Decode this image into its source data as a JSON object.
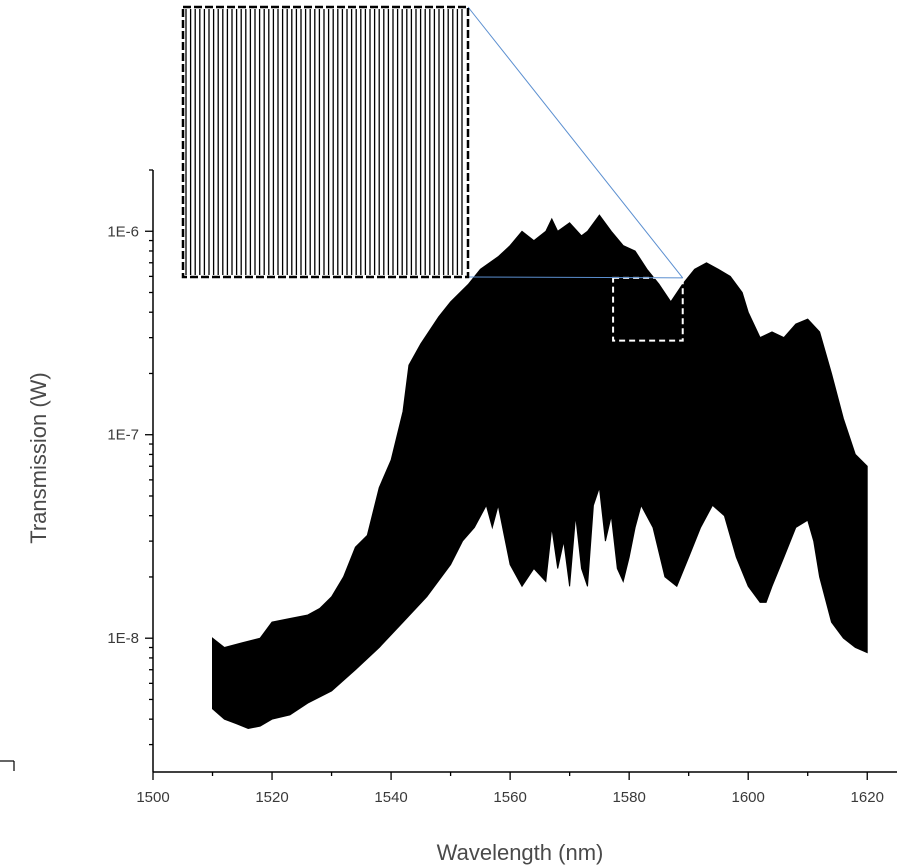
{
  "chart_data": {
    "type": "area",
    "xlabel": "Wavelength (nm)",
    "ylabel": "Transmission (W)",
    "xlim": [
      1500,
      1625
    ],
    "ylim": [
      2.2e-09,
      2e-06
    ],
    "y_scale": "log",
    "x_ticks": [
      1500,
      1520,
      1540,
      1560,
      1580,
      1600,
      1620
    ],
    "x_tick_labels": [
      "1500",
      "1520",
      "1540",
      "1560",
      "1580",
      "1600",
      "1620"
    ],
    "y_ticks": [
      1e-08,
      1e-07,
      1e-06
    ],
    "y_tick_labels": [
      "1E-8",
      "1E-7",
      "1E-6"
    ],
    "grid": false,
    "legend": "none",
    "fill_color": "#000000",
    "envelope_upper": {
      "x": [
        1510,
        1512,
        1515,
        1518,
        1520,
        1523,
        1526,
        1528,
        1530,
        1532,
        1534,
        1536,
        1538,
        1540,
        1542,
        1543,
        1545,
        1548,
        1550,
        1553,
        1555,
        1558,
        1560,
        1562,
        1564,
        1566,
        1567,
        1568,
        1570,
        1572,
        1573,
        1575,
        1577,
        1579,
        1581,
        1583,
        1585,
        1587,
        1589,
        1591,
        1593,
        1595,
        1597,
        1599,
        1600,
        1602,
        1604,
        1606,
        1608,
        1610,
        1612,
        1614,
        1616,
        1618,
        1620
      ],
      "y": [
        1e-08,
        9e-09,
        9.5e-09,
        1e-08,
        1.2e-08,
        1.25e-08,
        1.3e-08,
        1.4e-08,
        1.6e-08,
        2e-08,
        2.8e-08,
        3.2e-08,
        5.5e-08,
        7.5e-08,
        1.3e-07,
        2.2e-07,
        2.8e-07,
        3.8e-07,
        4.5e-07,
        5.5e-07,
        6.5e-07,
        7.5e-07,
        8.5e-07,
        1e-06,
        9e-07,
        1e-06,
        1.15e-06,
        1e-06,
        1.1e-06,
        9.5e-07,
        1e-06,
        1.2e-06,
        1e-06,
        8.5e-07,
        8e-07,
        6.5e-07,
        5.5e-07,
        4.5e-07,
        5.5e-07,
        6.5e-07,
        7e-07,
        6.5e-07,
        6e-07,
        5e-07,
        4e-07,
        3e-07,
        3.2e-07,
        3e-07,
        3.5e-07,
        3.7e-07,
        3.2e-07,
        2e-07,
        1.2e-07,
        8e-08,
        7e-08
      ]
    },
    "envelope_lower": {
      "x": [
        1510,
        1512,
        1514,
        1516,
        1518,
        1520,
        1523,
        1526,
        1530,
        1534,
        1538,
        1542,
        1546,
        1550,
        1552,
        1554,
        1556,
        1557,
        1558,
        1559,
        1560,
        1562,
        1564,
        1566,
        1567,
        1568,
        1569,
        1570,
        1571,
        1572,
        1573,
        1574,
        1575,
        1576,
        1577,
        1578,
        1579,
        1580,
        1581,
        1582,
        1584,
        1586,
        1588,
        1590,
        1592,
        1594,
        1596,
        1598,
        1600,
        1602,
        1603,
        1604,
        1606,
        1608,
        1610,
        1611,
        1612,
        1614,
        1616,
        1618,
        1620
      ],
      "y": [
        4.5e-09,
        4e-09,
        3.8e-09,
        3.6e-09,
        3.7e-09,
        4e-09,
        4.2e-09,
        4.8e-09,
        5.5e-09,
        7e-09,
        9e-09,
        1.2e-08,
        1.6e-08,
        2.3e-08,
        3e-08,
        3.5e-08,
        4.5e-08,
        3.5e-08,
        4.5e-08,
        3.2e-08,
        2.3e-08,
        1.8e-08,
        2.2e-08,
        1.9e-08,
        3.5e-08,
        2.2e-08,
        3e-08,
        1.8e-08,
        4e-08,
        2.2e-08,
        1.8e-08,
        4.5e-08,
        5.5e-08,
        3e-08,
        4e-08,
        2.2e-08,
        1.9e-08,
        2.5e-08,
        3.5e-08,
        4.5e-08,
        3.5e-08,
        2e-08,
        1.8e-08,
        2.5e-08,
        3.5e-08,
        4.5e-08,
        4e-08,
        2.5e-08,
        1.8e-08,
        1.5e-08,
        1.5e-08,
        1.8e-08,
        2.5e-08,
        3.5e-08,
        3.8e-08,
        3e-08,
        2e-08,
        1.2e-08,
        1e-08,
        9e-09,
        8.5e-09
      ]
    },
    "zoom_region": {
      "x_range": [
        1577.3,
        1589.0
      ],
      "y_range": [
        2.9e-07,
        5.9e-07
      ]
    }
  }
}
